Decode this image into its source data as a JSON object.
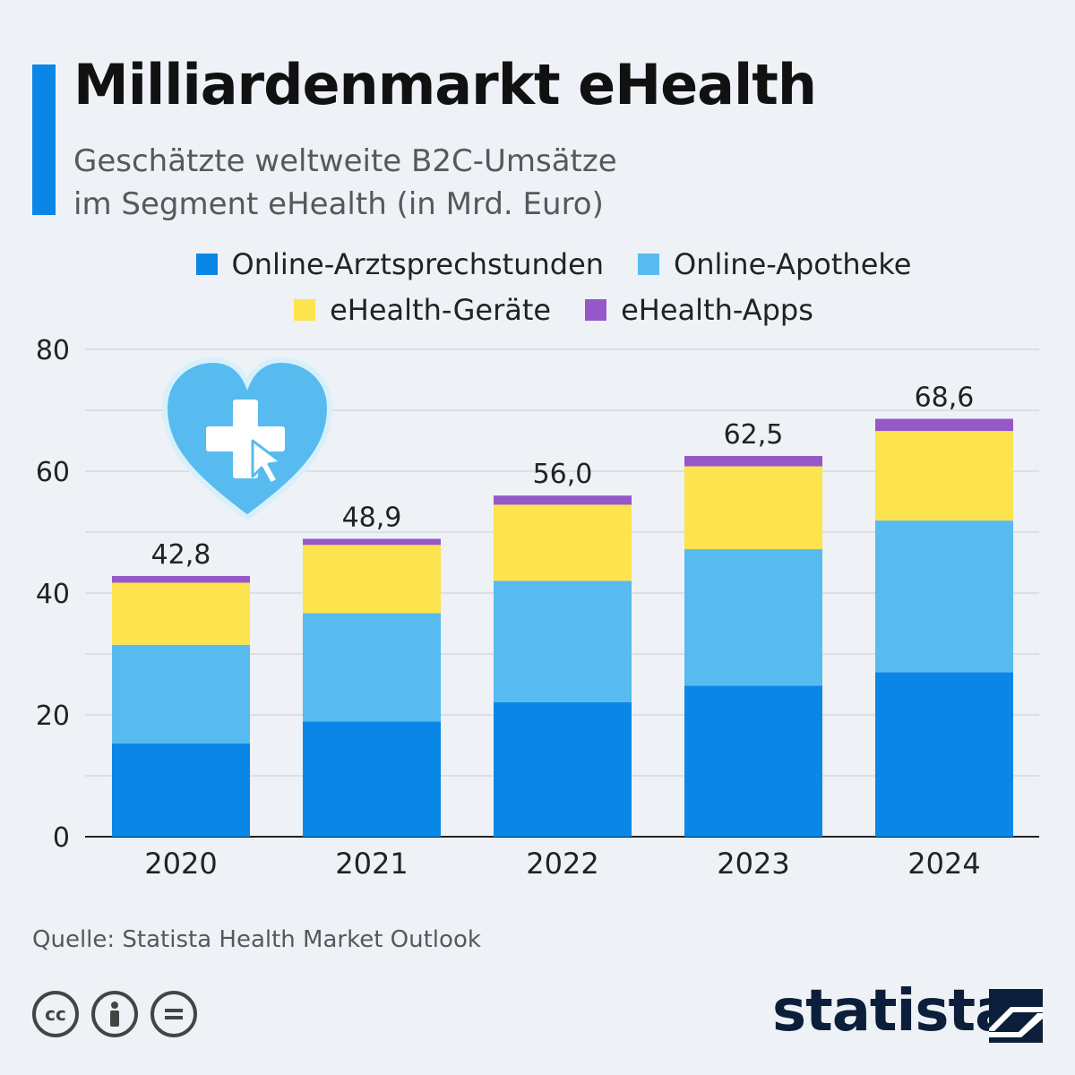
{
  "header": {
    "title": "Milliardenmarkt eHealth",
    "subtitle_line1": "Geschätzte weltweite B2C-Umsätze",
    "subtitle_line2": "im Segment eHealth (in Mrd. Euro)"
  },
  "legend": [
    {
      "label": "Online-Arztsprechstunden",
      "color": "#0a87e6"
    },
    {
      "label": "Online-Apotheke",
      "color": "#57bbef"
    },
    {
      "label": "eHealth-Geräte",
      "color": "#fde34d"
    },
    {
      "label": "eHealth-Apps",
      "color": "#9658c9"
    }
  ],
  "chart_data": {
    "type": "bar",
    "stacked": true,
    "categories": [
      "2020",
      "2021",
      "2022",
      "2023",
      "2024"
    ],
    "series": [
      {
        "name": "Online-Arztsprechstunden",
        "color": "#0a87e6",
        "values": [
          15.3,
          18.9,
          22.1,
          24.8,
          27.0
        ]
      },
      {
        "name": "Online-Apotheke",
        "color": "#57bbef",
        "values": [
          16.2,
          17.8,
          19.9,
          22.4,
          24.9
        ]
      },
      {
        "name": "eHealth-Geräte",
        "color": "#fde34d",
        "values": [
          10.2,
          11.2,
          12.5,
          13.6,
          14.7
        ]
      },
      {
        "name": "eHealth-Apps",
        "color": "#9658c9",
        "values": [
          1.1,
          1.0,
          1.5,
          1.7,
          2.0
        ]
      }
    ],
    "totals": [
      "42,8",
      "48,9",
      "56,0",
      "62,5",
      "68,6"
    ],
    "yticks": [
      "0",
      "20",
      "40",
      "60",
      "80"
    ],
    "ylim": [
      0,
      80
    ],
    "grid": true,
    "legend_position": "top"
  },
  "footer": {
    "source": "Quelle: Statista Health Market Outlook",
    "brand": "statista",
    "license_icons": [
      "creative-commons-icon",
      "attribution-icon",
      "no-derivatives-icon"
    ]
  }
}
